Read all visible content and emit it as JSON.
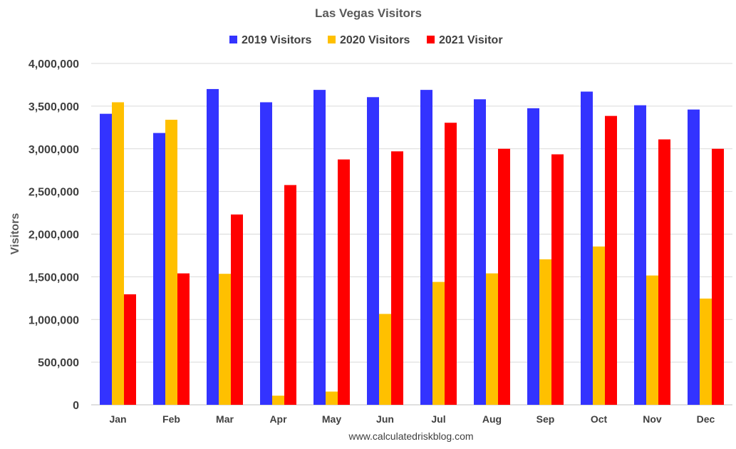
{
  "chart_data": {
    "type": "bar",
    "title": "Las Vegas Visitors",
    "ylabel": "Visitors",
    "xlabel": "",
    "source": "www.calculatedriskblog.com",
    "categories": [
      "Jan",
      "Feb",
      "Mar",
      "Apr",
      "May",
      "Jun",
      "Jul",
      "Aug",
      "Sep",
      "Oct",
      "Nov",
      "Dec"
    ],
    "series": [
      {
        "name": "2019 Visitors",
        "color": "#3333ff",
        "values": [
          3410000,
          3185000,
          3700000,
          3545000,
          3690000,
          3605000,
          3690000,
          3580000,
          3475000,
          3670000,
          3510000,
          3460000
        ]
      },
      {
        "name": "2020 Visitors",
        "color": "#ffc000",
        "values": [
          3545000,
          3340000,
          1535000,
          107000,
          155000,
          1065000,
          1440000,
          1540000,
          1705000,
          1855000,
          1515000,
          1245000
        ]
      },
      {
        "name": "2021 Visitor",
        "color": "#ff0000",
        "values": [
          1295000,
          1540000,
          2230000,
          2575000,
          2875000,
          2970000,
          3305000,
          3000000,
          2935000,
          3385000,
          3110000,
          3000000
        ]
      }
    ],
    "ylim": [
      0,
      4000000
    ],
    "yticks": [
      0,
      500000,
      1000000,
      1500000,
      2000000,
      2500000,
      3000000,
      3500000,
      4000000
    ],
    "ytick_labels": [
      "0",
      "500,000",
      "1,000,000",
      "1,500,000",
      "2,000,000",
      "2,500,000",
      "3,000,000",
      "3,500,000",
      "4,000,000"
    ],
    "grid": true,
    "legend_position": "top-center"
  }
}
